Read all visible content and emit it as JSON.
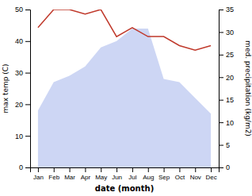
{
  "chart_data": {
    "type": "line",
    "categories": [
      "Jan",
      "Feb",
      "Mar",
      "Apr",
      "May",
      "Jun",
      "Jul",
      "Aug",
      "Sep",
      "Oct",
      "Nov",
      "Dec"
    ],
    "xlabel": "date (month)",
    "ylabel": "max temp (C)",
    "y2label": "med. precipitation (kg/m2)",
    "ylim": [
      0,
      50
    ],
    "yticks": [
      0,
      10,
      20,
      30,
      40,
      50
    ],
    "y2lim": [
      0,
      35
    ],
    "y2ticks": [
      0,
      5,
      10,
      15,
      20,
      25,
      30,
      35
    ],
    "series": [
      {
        "type": "area",
        "color": "#b8c5f0",
        "values": [
          18,
          27,
          29,
          32,
          38,
          40,
          44,
          44,
          28,
          27,
          22,
          17
        ]
      },
      {
        "type": "line",
        "color": "#c0392b",
        "axis": "y2",
        "values": [
          31,
          35,
          35,
          34,
          35,
          29,
          31,
          29,
          29,
          27,
          26,
          27
        ]
      }
    ]
  }
}
